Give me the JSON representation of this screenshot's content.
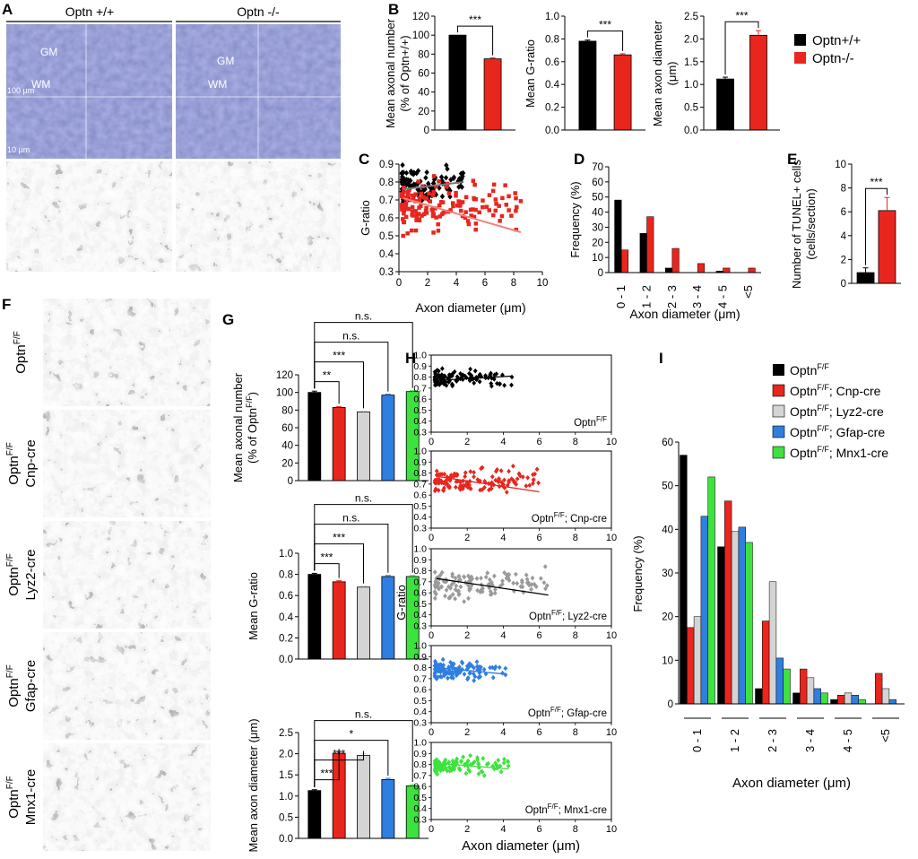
{
  "panels": {
    "A": {
      "letter": "A",
      "headers": [
        "Optn +/+",
        "Optn -/-"
      ],
      "labels": {
        "gm": "GM",
        "wm": "WM",
        "scale_100": "100 μm",
        "scale_10": "10 μm",
        "scale_1": "1 μm"
      }
    },
    "F": {
      "letter": "F",
      "row_labels": [
        {
          "main": "Optn",
          "sup": "F/F",
          "line2": ""
        },
        {
          "main": "Optn",
          "sup": "F/F",
          "line2": "Cnp-cre"
        },
        {
          "main": "Optn",
          "sup": "F/F",
          "line2": "Lyz2-cre"
        },
        {
          "main": "Optn",
          "sup": "F/F",
          "line2": "Gfap-cre"
        },
        {
          "main": "Optn",
          "sup": "F/F",
          "line2": "Mnx1-cre"
        }
      ],
      "scale": "1 μm"
    }
  },
  "legend_B": {
    "entries": [
      {
        "name": "Optn+/+",
        "color": "#000000"
      },
      {
        "name": "Optn-/-",
        "color": "#e8261e"
      }
    ]
  },
  "legend_I": {
    "entries": [
      {
        "main": "Optn",
        "sup": "F/F",
        "rest": "",
        "color": "#000000"
      },
      {
        "main": "Optn",
        "sup": "F/F",
        "rest": "; Cnp-cre",
        "color": "#e8261e"
      },
      {
        "main": "Optn",
        "sup": "F/F",
        "rest": "; Lyz2-cre",
        "color": "#d4d4d4"
      },
      {
        "main": "Optn",
        "sup": "F/F",
        "rest": "; Gfap-cre",
        "color": "#2f7fe0"
      },
      {
        "main": "Optn",
        "sup": "F/F",
        "rest": "; Mnx1-cre",
        "color": "#3ee23e"
      }
    ]
  },
  "chart_data": [
    {
      "id": "B1",
      "letter": "B",
      "type": "bar",
      "categories": [
        "Optn+/+",
        "Optn-/-"
      ],
      "values": [
        100,
        75
      ],
      "errors": [
        0,
        1
      ],
      "ylim": [
        0,
        120
      ],
      "yticks": [
        0,
        20,
        40,
        60,
        80,
        100,
        120
      ],
      "ylabel": [
        "Mean axonal number",
        "(% of Optn+/+)"
      ],
      "sig": [
        {
          "a": 0,
          "b": 1,
          "label": "***"
        }
      ]
    },
    {
      "id": "B2",
      "type": "bar",
      "categories": [
        "Optn+/+",
        "Optn-/-"
      ],
      "values": [
        0.78,
        0.66
      ],
      "errors": [
        0.01,
        0.01
      ],
      "ylim": [
        0,
        1.0
      ],
      "yticks": [
        0,
        0.2,
        0.4,
        0.6,
        0.8,
        1.0
      ],
      "ylabel": [
        "Mean G-ratio"
      ],
      "sig": [
        {
          "a": 0,
          "b": 1,
          "label": "***"
        }
      ]
    },
    {
      "id": "B3",
      "type": "bar",
      "categories": [
        "Optn+/+",
        "Optn-/-"
      ],
      "values": [
        1.12,
        2.08
      ],
      "errors": [
        0.04,
        0.1
      ],
      "ylim": [
        0,
        2.5
      ],
      "yticks": [
        0,
        0.5,
        1.0,
        1.5,
        2.0,
        2.5
      ],
      "ylabel": [
        "Mean axon diameter",
        "(μm)"
      ],
      "sig": [
        {
          "a": 0,
          "b": 1,
          "label": "***"
        }
      ]
    },
    {
      "id": "C",
      "letter": "C",
      "type": "scatter",
      "xlim": [
        0,
        10
      ],
      "ylim": [
        0.3,
        0.9
      ],
      "xticks": [
        0,
        2,
        4,
        6,
        8,
        10
      ],
      "yticks": [
        0.3,
        0.4,
        0.5,
        0.6,
        0.7,
        0.8,
        0.9
      ],
      "xlabel": "Axon diameter (μm)",
      "ylabel": "G-ratio",
      "series": [
        {
          "color": "#000000",
          "marker": "diamond",
          "cloud": {
            "n": 110,
            "xmin": 0.2,
            "xmax": 4.5,
            "xskew": 2.2,
            "ymean": 0.79,
            "yspread": 0.08
          },
          "trend": [
            0.3,
            0.76,
            4.5,
            0.8
          ]
        },
        {
          "color": "#e8261e",
          "marker": "square",
          "cloud": {
            "n": 150,
            "xmin": 0.2,
            "xmax": 8.5,
            "xskew": 1.7,
            "ymean": 0.67,
            "yspread": 0.12
          },
          "trend": [
            0.3,
            0.71,
            8.5,
            0.52
          ]
        }
      ]
    },
    {
      "id": "D",
      "letter": "D",
      "type": "bar",
      "categories": [
        "0 - 1",
        "1 - 2",
        "2 - 3",
        "3 - 4",
        "4 - 5",
        "<5"
      ],
      "ylim": [
        0,
        70
      ],
      "yticks": [
        0,
        10,
        20,
        30,
        40,
        50,
        60,
        70
      ],
      "ylabel": [
        "Frequency (%)"
      ],
      "xlabel": "Axon diameter (μm)",
      "series": [
        {
          "color": "#000000",
          "values": [
            48,
            26,
            3,
            0,
            1,
            0
          ]
        },
        {
          "color": "#e8261e",
          "values": [
            15,
            37,
            16,
            6,
            3,
            3
          ]
        }
      ]
    },
    {
      "id": "E",
      "letter": "E",
      "type": "bar",
      "categories": [
        "Optn+/+",
        "Optn-/-"
      ],
      "values": [
        0.9,
        6.1
      ],
      "errors": [
        0.4,
        1.1
      ],
      "ylim": [
        0,
        10
      ],
      "yticks": [
        0,
        2,
        4,
        6,
        8,
        10
      ],
      "ylabel": [
        "Number of TUNEL+ cells",
        "(cells/section)"
      ],
      "sig": [
        {
          "a": 0,
          "b": 1,
          "label": "***"
        }
      ]
    },
    {
      "id": "G1",
      "letter": "G",
      "type": "bar",
      "categories": [
        "Optn F/F",
        "Cnp-cre",
        "Lyz2-cre",
        "Gfap-cre",
        "Mnx1-cre"
      ],
      "values": [
        100,
        83,
        78,
        97,
        101
      ],
      "errors": [
        1.5,
        1,
        1,
        1,
        1
      ],
      "ylim": [
        0,
        120
      ],
      "yticks": [
        0,
        20,
        40,
        60,
        80,
        100,
        120
      ],
      "ylabel": [
        "Mean axonal number",
        "(% of Optn"
      ],
      "ylabel_sup": "F/F",
      "ylabel_tail": ")",
      "sig": [
        {
          "a": 0,
          "b": 1,
          "label": "**"
        },
        {
          "a": 0,
          "b": 2,
          "label": "***"
        },
        {
          "a": 0,
          "b": 3,
          "label": "n.s."
        },
        {
          "a": 0,
          "b": 4,
          "label": "n.s."
        }
      ]
    },
    {
      "id": "G2",
      "type": "bar",
      "categories": [
        "Optn F/F",
        "Cnp-cre",
        "Lyz2-cre",
        "Gfap-cre",
        "Mnx1-cre"
      ],
      "values": [
        0.8,
        0.73,
        0.68,
        0.78,
        0.78
      ],
      "errors": [
        0.01,
        0.01,
        0.01,
        0.01,
        0.01
      ],
      "ylim": [
        0,
        1.0
      ],
      "yticks": [
        0,
        0.2,
        0.4,
        0.6,
        0.8,
        1.0
      ],
      "ylabel": [
        "Mean G-ratio"
      ],
      "sig": [
        {
          "a": 0,
          "b": 1,
          "label": "***"
        },
        {
          "a": 0,
          "b": 2,
          "label": "***"
        },
        {
          "a": 0,
          "b": 3,
          "label": "n.s."
        },
        {
          "a": 0,
          "b": 4,
          "label": "n.s."
        }
      ]
    },
    {
      "id": "G3",
      "type": "bar",
      "categories": [
        "Optn F/F",
        "Cnp-cre",
        "Lyz2-cre",
        "Gfap-cre",
        "Mnx1-cre"
      ],
      "values": [
        1.13,
        2.01,
        1.96,
        1.39,
        1.24
      ],
      "errors": [
        0.02,
        0.04,
        0.04,
        0.03,
        0.03
      ],
      "ylim": [
        0,
        2.5
      ],
      "yticks": [
        0,
        0.5,
        1.0,
        1.5,
        2.0,
        2.5
      ],
      "ylabel": [
        "Mean axon diameter (μm)"
      ],
      "sig": [
        {
          "a": 0,
          "b": 1,
          "label": "***"
        },
        {
          "a": 0,
          "b": 2,
          "label": "***"
        },
        {
          "a": 0,
          "b": 3,
          "label": "*"
        },
        {
          "a": 0,
          "b": 4,
          "label": "n.s."
        }
      ]
    },
    {
      "id": "H",
      "letter": "H",
      "type": "scatter",
      "xlim": [
        0,
        10
      ],
      "ylim": [
        0.3,
        1.0
      ],
      "xticks": [
        0,
        2,
        4,
        6,
        8,
        10
      ],
      "yticks": [
        0.3,
        0.4,
        0.5,
        0.6,
        0.7,
        0.8,
        0.9,
        1.0
      ],
      "ylabel": "G-ratio",
      "xlabel": "Axon diameter (μm)",
      "subplots": [
        {
          "label_main": "Optn",
          "label_sup": "F/F",
          "label_rest": "",
          "color": "#000000",
          "marker": "diamond",
          "cloud": {
            "n": 110,
            "xmin": 0.2,
            "xmax": 4.5,
            "xskew": 2.2,
            "ymean": 0.79,
            "yspread": 0.06
          },
          "trend": [
            0.3,
            0.77,
            4.5,
            0.81
          ]
        },
        {
          "label_main": "Optn",
          "label_sup": "F/F",
          "label_rest": "; Cnp-cre",
          "color": "#e8261e",
          "marker": "diamond",
          "cloud": {
            "n": 130,
            "xmin": 0.2,
            "xmax": 6.0,
            "xskew": 1.6,
            "ymean": 0.73,
            "yspread": 0.09
          },
          "trend": [
            0.3,
            0.77,
            6.0,
            0.63
          ]
        },
        {
          "label_main": "Optn",
          "label_sup": "F/F",
          "label_rest": "; Lyz2-cre",
          "color": "#9a9a9a",
          "marker": "diamond",
          "cloud": {
            "n": 130,
            "xmin": 0.2,
            "xmax": 6.5,
            "xskew": 1.6,
            "ymean": 0.68,
            "yspread": 0.11
          },
          "trend": [
            0.3,
            0.73,
            6.5,
            0.58
          ]
        },
        {
          "label_main": "Optn",
          "label_sup": "F/F",
          "label_rest": "; Gfap-cre",
          "color": "#2f7fe0",
          "marker": "diamond",
          "cloud": {
            "n": 120,
            "xmin": 0.2,
            "xmax": 4.2,
            "xskew": 2.0,
            "ymean": 0.78,
            "yspread": 0.06
          },
          "trend": [
            0.3,
            0.8,
            4.2,
            0.74
          ]
        },
        {
          "label_main": "Optn",
          "label_sup": "F/F",
          "label_rest": "; Mnx1-cre",
          "color": "#3ee23e",
          "marker": "diamond",
          "cloud": {
            "n": 110,
            "xmin": 0.2,
            "xmax": 4.3,
            "xskew": 2.0,
            "ymean": 0.79,
            "yspread": 0.06
          },
          "trend": [
            0.3,
            0.81,
            4.3,
            0.76
          ]
        }
      ]
    },
    {
      "id": "I",
      "letter": "I",
      "type": "bar",
      "categories": [
        "0 - 1",
        "1 - 2",
        "2 - 3",
        "3 - 4",
        "4 - 5",
        "<5"
      ],
      "ylim": [
        0,
        60
      ],
      "yticks": [
        0,
        10,
        20,
        30,
        40,
        50,
        60
      ],
      "ylabel": [
        "Frequency (%)"
      ],
      "xlabel": "Axon diameter (μm)",
      "series": [
        {
          "color": "#000000",
          "values": [
            57,
            36,
            3.5,
            2.5,
            1,
            0
          ]
        },
        {
          "color": "#e8261e",
          "values": [
            17.5,
            46.5,
            19,
            8,
            2,
            7
          ]
        },
        {
          "color": "#d4d4d4",
          "values": [
            20,
            39.5,
            28,
            6,
            2.5,
            3.5
          ]
        },
        {
          "color": "#2f7fe0",
          "values": [
            43,
            40.5,
            10.5,
            3.5,
            2,
            1
          ]
        },
        {
          "color": "#3ee23e",
          "values": [
            52,
            37,
            8,
            2.5,
            1,
            0
          ]
        }
      ]
    }
  ]
}
